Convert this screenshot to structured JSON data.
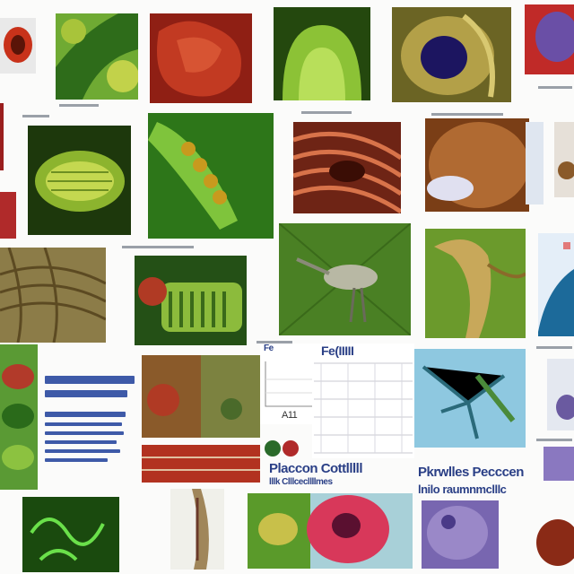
{
  "captions": {
    "chart_caption_left": "Fe",
    "chart_title": "Fe(IIIII",
    "chart_axis_label": "A11",
    "caption_bottom_middle": "Placcon Cottlllll",
    "caption_bottom_middle_sub": "lllk Clllcecllllmes",
    "caption_bottom_right": "Pkrwlles Pecccen",
    "caption_bottom_right_sub": "lnilo raumnmclllc"
  },
  "colors": {
    "page_background": "#fbfbfa",
    "caption_blue": "#2a3f86",
    "plant_green": "#4f8a1f",
    "tissue_red": "#b02a1c",
    "cell_purple": "#6a4fa6"
  }
}
